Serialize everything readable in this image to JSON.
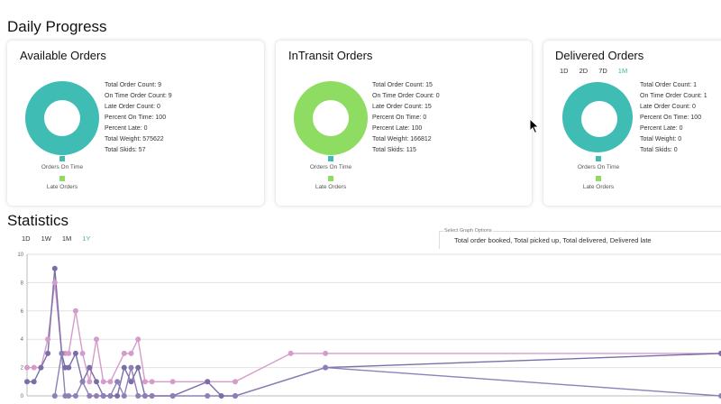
{
  "daily_progress": {
    "title": "Daily Progress"
  },
  "cards": [
    {
      "title": "Available Orders",
      "donut_color": "#3fbcb4",
      "stats": [
        "Total Order Count: 9",
        "On Time Order Count: 9",
        "Late Order Count: 0",
        "Percent On Time: 100",
        "Percent Late: 0",
        "Total Weight: 575622",
        "Total Skids: 57"
      ]
    },
    {
      "title": "InTransit Orders",
      "donut_color": "#8fdc62",
      "stats": [
        "Total Order Count: 15",
        "On Time Order Count: 0",
        "Late Order Count: 15",
        "Percent On Time: 0",
        "Percent Late: 100",
        "Total Weight: 166812",
        "Total Skids: 115"
      ]
    },
    {
      "title": "Delivered Orders",
      "donut_color": "#3fbcb4",
      "stats": [
        "Total Order Count: 1",
        "On Time Order Count: 1",
        "Late Order Count: 0",
        "Percent On Time: 100",
        "Percent Late: 0",
        "Total Weight: 0",
        "Total Skids: 0"
      ]
    }
  ],
  "card_legend": {
    "on_time": "Orders On Time",
    "late": "Late Orders",
    "on_time_color": "#3fbcb4",
    "late_color": "#8fdc62"
  },
  "delivered_ranges": [
    "1D",
    "2D",
    "7D",
    "1M"
  ],
  "delivered_active_range": "1M",
  "statistics": {
    "title": "Statistics",
    "ranges": [
      "1D",
      "1W",
      "1M",
      "1Y"
    ],
    "active_range": "1Y",
    "graph_options": {
      "label": "Select Graph Options",
      "value": "Total order booked, Total picked up, Total delivered, Delivered late"
    }
  },
  "accent_color": "#3fb6a0",
  "chart_data": {
    "type": "line",
    "ylim": [
      0,
      10
    ],
    "yticks": [
      "0",
      "2",
      "4",
      "6",
      "8",
      "10"
    ],
    "xlim": [
      0,
      100
    ],
    "grid": true,
    "series": [
      {
        "color": "#d59ccb",
        "x": [
          0,
          1,
          2,
          3,
          4,
          5,
          5.5,
          6,
          7,
          8,
          9,
          10,
          11,
          12,
          14,
          15,
          16,
          17,
          18,
          21,
          26,
          30,
          38,
          43,
          100
        ],
        "y": [
          2,
          2,
          2,
          4,
          8,
          3,
          3,
          3,
          6,
          3,
          1,
          4,
          1,
          1,
          3,
          3,
          4,
          1,
          1,
          1,
          1,
          1,
          3,
          3,
          3
        ]
      },
      {
        "color": "#7a6ea8",
        "x": [
          0,
          1,
          2,
          3,
          4,
          5,
          5.5,
          6,
          7,
          8,
          9,
          10,
          11,
          12,
          13,
          14,
          15,
          16,
          17,
          18,
          21,
          26,
          28,
          30,
          43,
          100
        ],
        "y": [
          1,
          1,
          2,
          3,
          9,
          3,
          2,
          2,
          3,
          1,
          2,
          1,
          0,
          0,
          0,
          2,
          1,
          2,
          0,
          0,
          0,
          1,
          0,
          0,
          2,
          3
        ]
      },
      {
        "color": "#8f7fb7",
        "x": [
          4,
          5,
          5.5,
          6,
          7,
          8,
          9,
          10,
          11,
          12,
          13,
          14,
          15,
          16,
          17,
          18,
          21,
          26,
          30,
          43,
          100
        ],
        "y": [
          0,
          3,
          0,
          0,
          0,
          1,
          0,
          0,
          0,
          0,
          1,
          0,
          2,
          0,
          0,
          0,
          0,
          0,
          0,
          2,
          0
        ]
      }
    ]
  }
}
